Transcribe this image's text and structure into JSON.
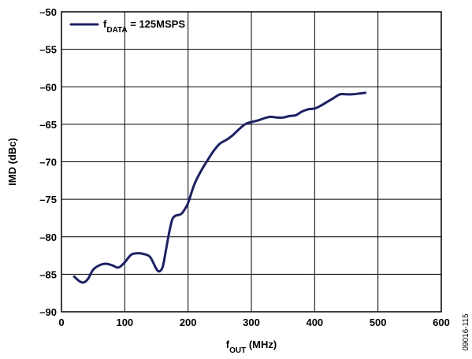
{
  "chart_data": {
    "type": "line",
    "title": "",
    "xlabel": {
      "main": "f",
      "sub": "OUT",
      "rest": " (MHz)"
    },
    "ylabel": "IMD (dBc)",
    "xlim": [
      0,
      600
    ],
    "ylim": [
      -90,
      -50
    ],
    "xticks": [
      0,
      100,
      200,
      300,
      400,
      500,
      600
    ],
    "yticks": [
      -90,
      -85,
      -80,
      -75,
      -70,
      -65,
      -60,
      -55,
      -50
    ],
    "xtick_labels": [
      "0",
      "100",
      "200",
      "300",
      "400",
      "500",
      "600"
    ],
    "ytick_labels": [
      "–90",
      "–85",
      "–80",
      "–75",
      "–70",
      "–65",
      "–60",
      "–55",
      "–50"
    ],
    "grid": true,
    "legend_position": "top-left",
    "series": [
      {
        "name": {
          "main": "f",
          "sub": "DATA",
          "rest": " = 125MSPS"
        },
        "color": "#1a1f6e",
        "x": [
          20,
          28,
          35,
          42,
          50,
          60,
          70,
          80,
          90,
          100,
          110,
          120,
          130,
          140,
          150,
          155,
          160,
          165,
          170,
          175,
          180,
          185,
          190,
          195,
          200,
          210,
          220,
          230,
          240,
          250,
          260,
          270,
          280,
          290,
          300,
          310,
          320,
          330,
          340,
          350,
          360,
          370,
          380,
          390,
          400,
          410,
          420,
          430,
          440,
          450,
          460,
          470,
          480
        ],
        "y": [
          -85.3,
          -85.9,
          -86.1,
          -85.6,
          -84.4,
          -83.8,
          -83.6,
          -83.8,
          -84.1,
          -83.4,
          -82.4,
          -82.2,
          -82.3,
          -82.7,
          -84.3,
          -84.6,
          -84.0,
          -81.8,
          -79.5,
          -77.7,
          -77.2,
          -77.1,
          -76.9,
          -76.3,
          -75.5,
          -73.0,
          -71.3,
          -69.9,
          -68.6,
          -67.6,
          -67.1,
          -66.5,
          -65.7,
          -65.0,
          -64.7,
          -64.5,
          -64.2,
          -64.0,
          -64.1,
          -64.1,
          -63.9,
          -63.8,
          -63.3,
          -63.0,
          -62.9,
          -62.5,
          -62.0,
          -61.5,
          -61.0,
          -61.0,
          -61.0,
          -60.9,
          -60.8
        ]
      }
    ]
  },
  "figure_id": "09016-115"
}
